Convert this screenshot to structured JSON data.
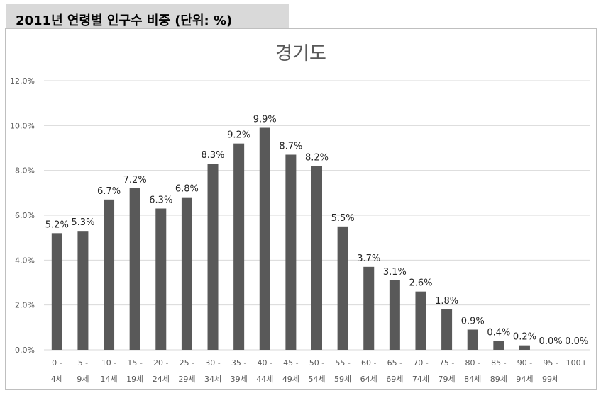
{
  "header": {
    "title": "2011년 연령별 인구수 비중 (단위: %)"
  },
  "chart_data": {
    "type": "bar",
    "title": "경기도",
    "xlabel": "",
    "ylabel": "",
    "ylim": [
      0,
      12
    ],
    "yticks": [
      "0.0%",
      "2.0%",
      "4.0%",
      "6.0%",
      "8.0%",
      "10.0%",
      "12.0%"
    ],
    "grid": true,
    "categories": [
      {
        "line1": "0 -",
        "line2": "4세"
      },
      {
        "line1": "5 -",
        "line2": "9세"
      },
      {
        "line1": "10 -",
        "line2": "14세"
      },
      {
        "line1": "15 -",
        "line2": "19세"
      },
      {
        "line1": "20 -",
        "line2": "24세"
      },
      {
        "line1": "25 -",
        "line2": "29세"
      },
      {
        "line1": "30 -",
        "line2": "34세"
      },
      {
        "line1": "35 -",
        "line2": "39세"
      },
      {
        "line1": "40 -",
        "line2": "44세"
      },
      {
        "line1": "45 -",
        "line2": "49세"
      },
      {
        "line1": "50 -",
        "line2": "54세"
      },
      {
        "line1": "55 -",
        "line2": "59세"
      },
      {
        "line1": "60 -",
        "line2": "64세"
      },
      {
        "line1": "65 -",
        "line2": "69세"
      },
      {
        "line1": "70 -",
        "line2": "74세"
      },
      {
        "line1": "75 -",
        "line2": "79세"
      },
      {
        "line1": "80 -",
        "line2": "84세"
      },
      {
        "line1": "85 -",
        "line2": "89세"
      },
      {
        "line1": "90 -",
        "line2": "94세"
      },
      {
        "line1": "95 -",
        "line2": "99세"
      },
      {
        "line1": "100+",
        "line2": ""
      }
    ],
    "values": [
      5.2,
      5.3,
      6.7,
      7.2,
      6.3,
      6.8,
      8.3,
      9.2,
      9.9,
      8.7,
      8.2,
      5.5,
      3.7,
      3.1,
      2.6,
      1.8,
      0.9,
      0.4,
      0.2,
      0.0,
      0.0
    ],
    "data_labels": [
      "5.2%",
      "5.3%",
      "6.7%",
      "7.2%",
      "6.3%",
      "6.8%",
      "8.3%",
      "9.2%",
      "9.9%",
      "8.7%",
      "8.2%",
      "5.5%",
      "3.7%",
      "3.1%",
      "2.6%",
      "1.8%",
      "0.9%",
      "0.4%",
      "0.2%",
      "0.0%",
      "0.0%"
    ],
    "bar_color": "#595959",
    "grid_color": "#d9d9d9"
  }
}
